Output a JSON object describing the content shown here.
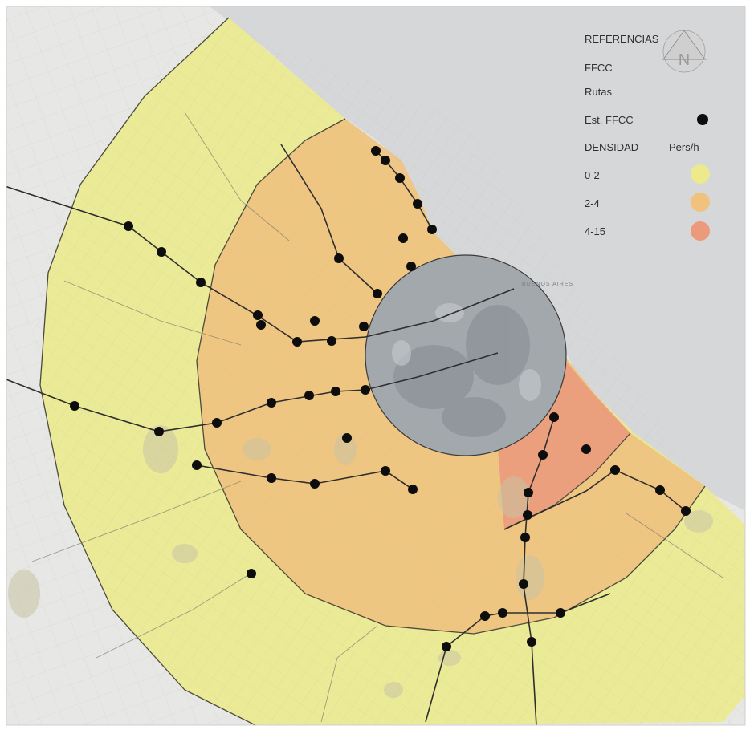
{
  "legend": {
    "title": "REFERENCIAS",
    "ffcc": "FFCC",
    "rutas": "Rutas",
    "estaciones": "Est. FFCC",
    "densidad": "DENSIDAD",
    "unidad": "Pers/h",
    "classes": [
      {
        "label": "0-2",
        "color": "#ecea8c"
      },
      {
        "label": "2-4",
        "color": "#f0c27e"
      },
      {
        "label": "4-15",
        "color": "#eb9a7c"
      }
    ]
  },
  "compass": {
    "letter": "N"
  },
  "city_label": "BUENOS AIRES",
  "colors": {
    "water": "#d9dadb",
    "land": "#e8e8e6",
    "zone_outer": "#ecea8c",
    "zone_middle": "#f0c27e",
    "zone_inner_high": "#eb9a7c",
    "core": "#9aa0a6",
    "station": "#0d0d0d"
  },
  "stations_count": 52
}
